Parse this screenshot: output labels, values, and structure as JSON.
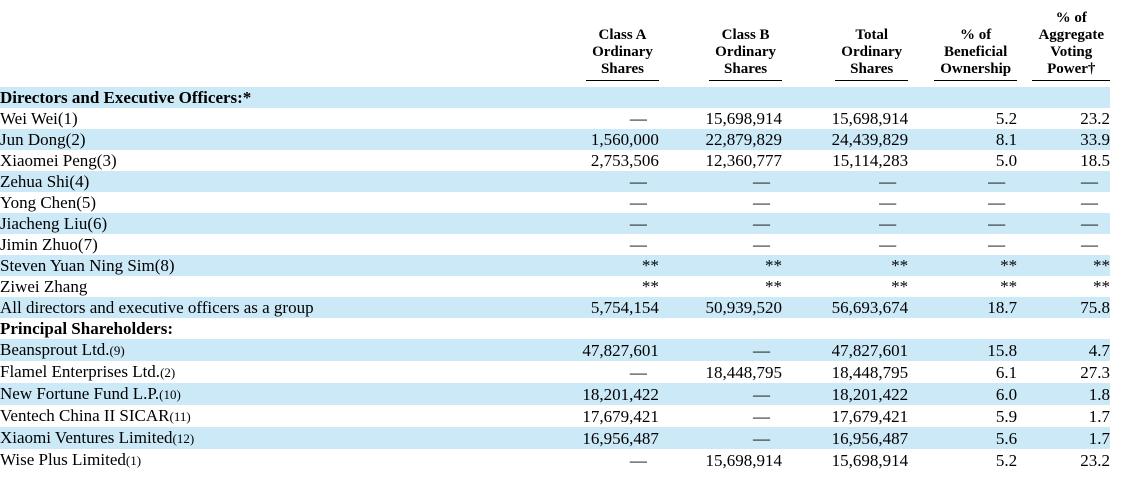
{
  "page": {
    "background_color": "#ffffff",
    "stripe_color": "#cce9f8",
    "text_color": "#000000",
    "dash_symbol": "—",
    "confidential_symbol": "**"
  },
  "table": {
    "columns": [
      {
        "key": "class-a-shares",
        "lines": [
          "Class A",
          "Ordinary",
          "Shares"
        ]
      },
      {
        "key": "class-b-shares",
        "lines": [
          "Class B",
          "Ordinary",
          "Shares"
        ]
      },
      {
        "key": "total-shares",
        "lines": [
          "Total",
          "Ordinary",
          "Shares"
        ]
      },
      {
        "key": "beneficial-ownership",
        "lines": [
          "% of",
          "Beneficial",
          "Ownership"
        ]
      },
      {
        "key": "voting-power",
        "lines": [
          "% of",
          "Aggregate",
          "Voting",
          "Power†"
        ]
      }
    ],
    "sections": [
      {
        "header": "Directors and Executive Officers:*",
        "rows": [
          {
            "label": "Wei Wei",
            "ref": "(1)",
            "ref_small": false,
            "values": [
              "—",
              "15,698,914",
              "15,698,914",
              "5.2",
              "23.2"
            ]
          },
          {
            "label": "Jun Dong",
            "ref": "(2)",
            "ref_small": false,
            "values": [
              "1,560,000",
              "22,879,829",
              "24,439,829",
              "8.1",
              "33.9"
            ]
          },
          {
            "label": "Xiaomei Peng",
            "ref": "(3)",
            "ref_small": false,
            "values": [
              "2,753,506",
              "12,360,777",
              "15,114,283",
              "5.0",
              "18.5"
            ]
          },
          {
            "label": "Zehua Shi",
            "ref": "(4)",
            "ref_small": false,
            "values": [
              "—",
              "—",
              "—",
              "—",
              "—"
            ]
          },
          {
            "label": "Yong Chen",
            "ref": "(5)",
            "ref_small": false,
            "values": [
              "—",
              "—",
              "—",
              "—",
              "—"
            ]
          },
          {
            "label": "Jiacheng Liu",
            "ref": "(6)",
            "ref_small": false,
            "values": [
              "—",
              "—",
              "—",
              "—",
              "—"
            ]
          },
          {
            "label": "Jimin Zhuo",
            "ref": "(7)",
            "ref_small": false,
            "values": [
              "—",
              "—",
              "—",
              "—",
              "—"
            ]
          },
          {
            "label": "Steven Yuan Ning Sim",
            "ref": "(8)",
            "ref_small": false,
            "values": [
              "**",
              "**",
              "**",
              "**",
              "**"
            ]
          },
          {
            "label": "Ziwei Zhang",
            "ref": "",
            "ref_small": false,
            "values": [
              "**",
              "**",
              "**",
              "**",
              "**"
            ]
          },
          {
            "label": "All directors and executive officers as a group",
            "ref": "",
            "ref_small": false,
            "values": [
              "5,754,154",
              "50,939,520",
              "56,693,674",
              "18.7",
              "75.8"
            ]
          }
        ]
      },
      {
        "header": "Principal Shareholders:",
        "rows": [
          {
            "label": "Beansprout Ltd.",
            "ref": "(9)",
            "ref_small": true,
            "values": [
              "47,827,601",
              "—",
              "47,827,601",
              "15.8",
              "4.7"
            ]
          },
          {
            "label": "Flamel Enterprises Ltd.",
            "ref": "(2)",
            "ref_small": true,
            "values": [
              "—",
              "18,448,795",
              "18,448,795",
              "6.1",
              "27.3"
            ]
          },
          {
            "label": "New Fortune Fund L.P.",
            "ref": "(10)",
            "ref_small": true,
            "values": [
              "18,201,422",
              "—",
              "18,201,422",
              "6.0",
              "1.8"
            ]
          },
          {
            "label": "Ventech China II SICAR",
            "ref": "(11)",
            "ref_small": true,
            "values": [
              "17,679,421",
              "—",
              "17,679,421",
              "5.9",
              "1.7"
            ]
          },
          {
            "label": "Xiaomi Ventures Limited",
            "ref": "(12)",
            "ref_small": true,
            "values": [
              "16,956,487",
              "—",
              "16,956,487",
              "5.6",
              "1.7"
            ]
          },
          {
            "label": "Wise Plus Limited",
            "ref": "(1)",
            "ref_small": true,
            "values": [
              "—",
              "15,698,914",
              "15,698,914",
              "5.2",
              "23.2"
            ]
          }
        ]
      }
    ]
  }
}
